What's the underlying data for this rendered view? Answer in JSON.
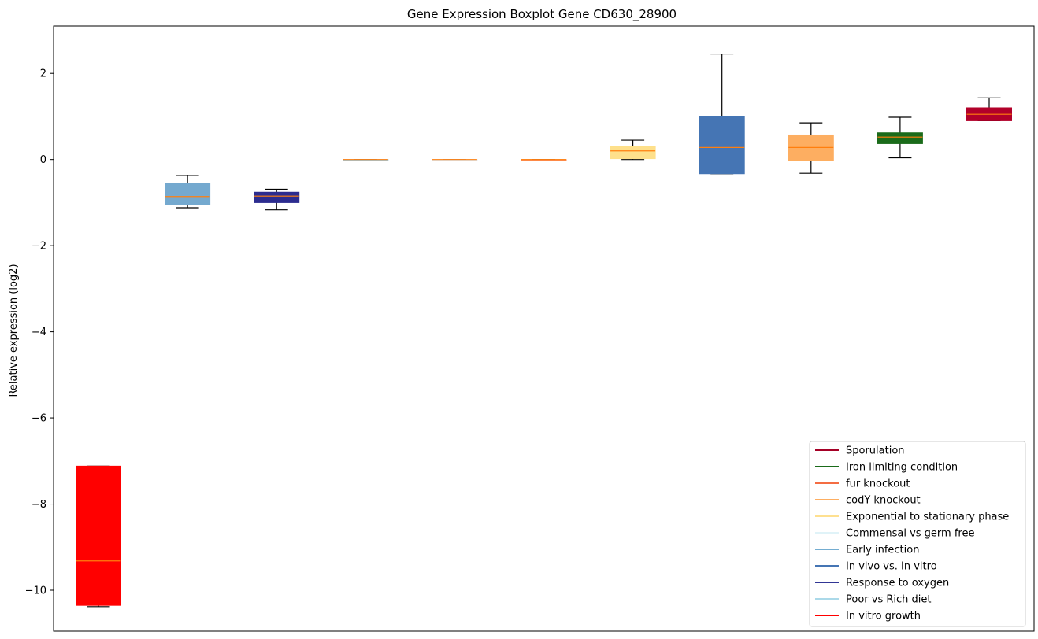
{
  "chart_data": {
    "type": "boxplot",
    "title": "Gene Expression Boxplot Gene CD630_28900",
    "xlabel": "",
    "ylabel": "Relative expression (log2)",
    "ylim": [
      -10.95,
      3.1
    ],
    "yticks": [
      {
        "value": 2,
        "label": "2"
      },
      {
        "value": 0,
        "label": "0"
      },
      {
        "value": -2,
        "label": "−2"
      },
      {
        "value": -4,
        "label": "−4"
      },
      {
        "value": -6,
        "label": "−6"
      },
      {
        "value": -8,
        "label": "−8"
      },
      {
        "value": -10,
        "label": "−10"
      }
    ],
    "grid": false,
    "legend_position": "bottom-right",
    "median_color": "#ff7f0e",
    "boxes": [
      {
        "name": "In vitro growth",
        "color": "#ff0000",
        "whisker_low": -10.38,
        "q1": -10.35,
        "median": -9.32,
        "q3": -7.12,
        "whisker_high": -7.12
      },
      {
        "name": "Early infection",
        "color": "#74a9cf",
        "whisker_low": -1.12,
        "q1": -1.04,
        "median": -0.86,
        "q3": -0.55,
        "whisker_high": -0.37
      },
      {
        "name": "Response to oxygen",
        "color": "#2c2c8f",
        "whisker_low": -1.17,
        "q1": -1.0,
        "median": -0.85,
        "q3": -0.76,
        "whisker_high": -0.69
      },
      {
        "name": "Poor vs Rich diet",
        "color": "#9ecae1",
        "whisker_low": 0.0,
        "q1": 0.0,
        "median": 0.0,
        "q3": 0.0,
        "whisker_high": 0.0
      },
      {
        "name": "Commensal vs germ free",
        "color": "#deebf7",
        "whisker_low": 0.0,
        "q1": 0.0,
        "median": 0.0,
        "q3": 0.0,
        "whisker_high": 0.0
      },
      {
        "name": "fur knockout",
        "color": "#fc8d59",
        "whisker_low": 0.0,
        "q1": 0.0,
        "median": 0.0,
        "q3": 0.0,
        "whisker_high": 0.0
      },
      {
        "name": "Exponential to stationary phase",
        "color": "#fee08b",
        "whisker_low": 0.0,
        "q1": 0.02,
        "median": 0.2,
        "q3": 0.3,
        "whisker_high": 0.45
      },
      {
        "name": "In vivo vs. In vitro",
        "color": "#4575b4",
        "whisker_low": -0.33,
        "q1": -0.33,
        "median": 0.28,
        "q3": 1.0,
        "whisker_high": 2.45
      },
      {
        "name": "codY knockout",
        "color": "#fdae61",
        "whisker_low": -0.32,
        "q1": -0.02,
        "median": 0.28,
        "q3": 0.57,
        "whisker_high": 0.85
      },
      {
        "name": "Iron limiting condition",
        "color": "#1a6b1a",
        "whisker_low": 0.04,
        "q1": 0.37,
        "median": 0.52,
        "q3": 0.62,
        "whisker_high": 0.98
      },
      {
        "name": "Sporulation",
        "color": "#b2002a",
        "whisker_low": 0.9,
        "q1": 0.9,
        "median": 1.05,
        "q3": 1.2,
        "whisker_high": 1.43
      }
    ],
    "legend": [
      {
        "label": "Sporulation",
        "color": "#a50026"
      },
      {
        "label": "Iron limiting condition",
        "color": "#1a6b1a"
      },
      {
        "label": "fur knockout",
        "color": "#f46d43"
      },
      {
        "label": "codY knockout",
        "color": "#fdae61"
      },
      {
        "label": "Exponential to stationary phase",
        "color": "#fee090"
      },
      {
        "label": "Commensal vs germ free",
        "color": "#e0f3f8"
      },
      {
        "label": "Early infection",
        "color": "#74add1"
      },
      {
        "label": "In vivo vs. In vitro",
        "color": "#4575b4"
      },
      {
        "label": "Response to oxygen",
        "color": "#313695"
      },
      {
        "label": "Poor vs Rich diet",
        "color": "#abd9e9"
      },
      {
        "label": "In vitro growth",
        "color": "#ff0000"
      }
    ]
  }
}
